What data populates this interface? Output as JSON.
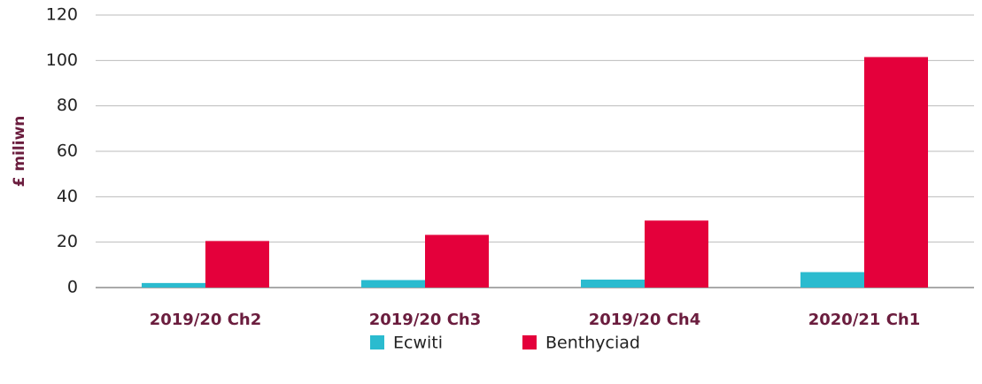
{
  "chart_data": {
    "type": "bar",
    "y_label": "£ miliwn",
    "categories": [
      "2019/20 Ch2",
      "2019/20 Ch3",
      "2019/20 Ch4",
      "2020/21 Ch1"
    ],
    "series": [
      {
        "name": "Ecwiti",
        "color": "#2bbbcf",
        "values": [
          2,
          3.3,
          3.5,
          6.8
        ]
      },
      {
        "name": "Benthyciad",
        "color": "#e4003b",
        "values": [
          20.5,
          23.2,
          29.5,
          101.5
        ]
      }
    ],
    "ylim": [
      0,
      120
    ],
    "yticks": [
      0,
      20,
      40,
      60,
      80,
      100,
      120
    ],
    "grid": true
  }
}
